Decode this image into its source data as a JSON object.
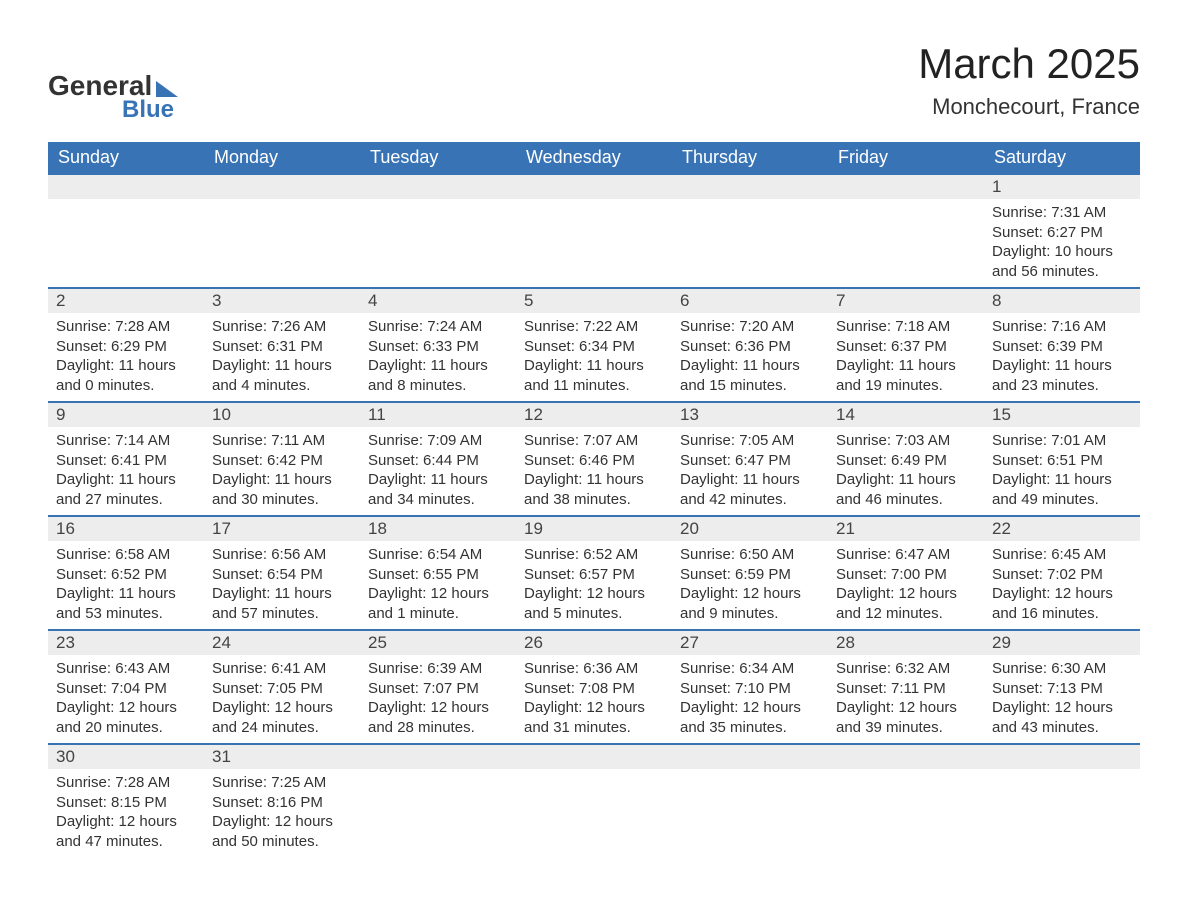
{
  "logo": {
    "word1": "General",
    "word2": "Blue"
  },
  "title": "March 2025",
  "location": "Monchecourt, France",
  "colors": {
    "header_bg": "#3773b5",
    "header_fg": "#ffffff",
    "daynum_bg": "#ededed",
    "row_divider": "#3773b5",
    "text": "#333333",
    "page_bg": "#ffffff"
  },
  "typography": {
    "title_fontsize": 42,
    "location_fontsize": 22,
    "header_fontsize": 18,
    "daynum_fontsize": 17,
    "body_fontsize": 15
  },
  "calendar": {
    "type": "table",
    "columns": [
      "Sunday",
      "Monday",
      "Tuesday",
      "Wednesday",
      "Thursday",
      "Friday",
      "Saturday"
    ],
    "weeks": [
      [
        null,
        null,
        null,
        null,
        null,
        null,
        {
          "n": "1",
          "sr": "7:31 AM",
          "ss": "6:27 PM",
          "dl": "10 hours and 56 minutes."
        }
      ],
      [
        {
          "n": "2",
          "sr": "7:28 AM",
          "ss": "6:29 PM",
          "dl": "11 hours and 0 minutes."
        },
        {
          "n": "3",
          "sr": "7:26 AM",
          "ss": "6:31 PM",
          "dl": "11 hours and 4 minutes."
        },
        {
          "n": "4",
          "sr": "7:24 AM",
          "ss": "6:33 PM",
          "dl": "11 hours and 8 minutes."
        },
        {
          "n": "5",
          "sr": "7:22 AM",
          "ss": "6:34 PM",
          "dl": "11 hours and 11 minutes."
        },
        {
          "n": "6",
          "sr": "7:20 AM",
          "ss": "6:36 PM",
          "dl": "11 hours and 15 minutes."
        },
        {
          "n": "7",
          "sr": "7:18 AM",
          "ss": "6:37 PM",
          "dl": "11 hours and 19 minutes."
        },
        {
          "n": "8",
          "sr": "7:16 AM",
          "ss": "6:39 PM",
          "dl": "11 hours and 23 minutes."
        }
      ],
      [
        {
          "n": "9",
          "sr": "7:14 AM",
          "ss": "6:41 PM",
          "dl": "11 hours and 27 minutes."
        },
        {
          "n": "10",
          "sr": "7:11 AM",
          "ss": "6:42 PM",
          "dl": "11 hours and 30 minutes."
        },
        {
          "n": "11",
          "sr": "7:09 AM",
          "ss": "6:44 PM",
          "dl": "11 hours and 34 minutes."
        },
        {
          "n": "12",
          "sr": "7:07 AM",
          "ss": "6:46 PM",
          "dl": "11 hours and 38 minutes."
        },
        {
          "n": "13",
          "sr": "7:05 AM",
          "ss": "6:47 PM",
          "dl": "11 hours and 42 minutes."
        },
        {
          "n": "14",
          "sr": "7:03 AM",
          "ss": "6:49 PM",
          "dl": "11 hours and 46 minutes."
        },
        {
          "n": "15",
          "sr": "7:01 AM",
          "ss": "6:51 PM",
          "dl": "11 hours and 49 minutes."
        }
      ],
      [
        {
          "n": "16",
          "sr": "6:58 AM",
          "ss": "6:52 PM",
          "dl": "11 hours and 53 minutes."
        },
        {
          "n": "17",
          "sr": "6:56 AM",
          "ss": "6:54 PM",
          "dl": "11 hours and 57 minutes."
        },
        {
          "n": "18",
          "sr": "6:54 AM",
          "ss": "6:55 PM",
          "dl": "12 hours and 1 minute."
        },
        {
          "n": "19",
          "sr": "6:52 AM",
          "ss": "6:57 PM",
          "dl": "12 hours and 5 minutes."
        },
        {
          "n": "20",
          "sr": "6:50 AM",
          "ss": "6:59 PM",
          "dl": "12 hours and 9 minutes."
        },
        {
          "n": "21",
          "sr": "6:47 AM",
          "ss": "7:00 PM",
          "dl": "12 hours and 12 minutes."
        },
        {
          "n": "22",
          "sr": "6:45 AM",
          "ss": "7:02 PM",
          "dl": "12 hours and 16 minutes."
        }
      ],
      [
        {
          "n": "23",
          "sr": "6:43 AM",
          "ss": "7:04 PM",
          "dl": "12 hours and 20 minutes."
        },
        {
          "n": "24",
          "sr": "6:41 AM",
          "ss": "7:05 PM",
          "dl": "12 hours and 24 minutes."
        },
        {
          "n": "25",
          "sr": "6:39 AM",
          "ss": "7:07 PM",
          "dl": "12 hours and 28 minutes."
        },
        {
          "n": "26",
          "sr": "6:36 AM",
          "ss": "7:08 PM",
          "dl": "12 hours and 31 minutes."
        },
        {
          "n": "27",
          "sr": "6:34 AM",
          "ss": "7:10 PM",
          "dl": "12 hours and 35 minutes."
        },
        {
          "n": "28",
          "sr": "6:32 AM",
          "ss": "7:11 PM",
          "dl": "12 hours and 39 minutes."
        },
        {
          "n": "29",
          "sr": "6:30 AM",
          "ss": "7:13 PM",
          "dl": "12 hours and 43 minutes."
        }
      ],
      [
        {
          "n": "30",
          "sr": "7:28 AM",
          "ss": "8:15 PM",
          "dl": "12 hours and 47 minutes."
        },
        {
          "n": "31",
          "sr": "7:25 AM",
          "ss": "8:16 PM",
          "dl": "12 hours and 50 minutes."
        },
        null,
        null,
        null,
        null,
        null
      ]
    ],
    "labels": {
      "sunrise": "Sunrise: ",
      "sunset": "Sunset: ",
      "daylight": "Daylight: "
    }
  }
}
